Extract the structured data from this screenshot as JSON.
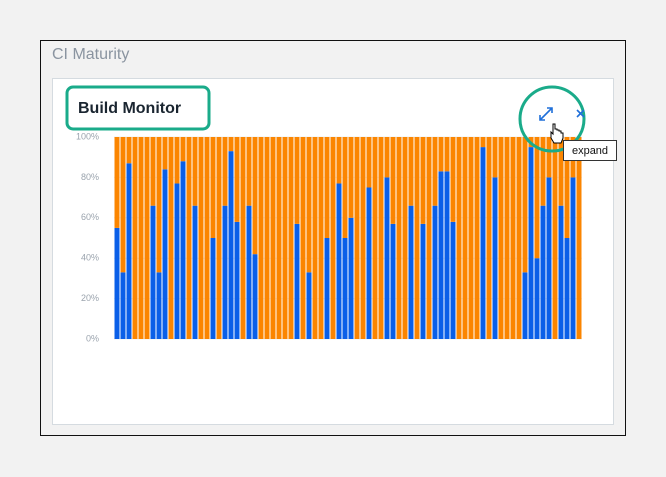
{
  "header": {
    "title": "CI Maturity"
  },
  "card": {
    "title": "Build Monitor",
    "tooltip": "expand"
  },
  "chart_data": {
    "type": "bar",
    "stacked": true,
    "series": [
      {
        "color": "#0a5fe8",
        "values": [
          55,
          33,
          87,
          0,
          0,
          0,
          66,
          33,
          84,
          0,
          77,
          88,
          0,
          66,
          0,
          0,
          50,
          0,
          66,
          93,
          58,
          0,
          66,
          42,
          0,
          0,
          0,
          0,
          0,
          0,
          57,
          0,
          33,
          0,
          0,
          50,
          0,
          77,
          50,
          60,
          0,
          0,
          75,
          0,
          0,
          80,
          57,
          0,
          0,
          66,
          0,
          57,
          0,
          66,
          83,
          83,
          58,
          0,
          0,
          0,
          0,
          95,
          0,
          80,
          0,
          0,
          0,
          0,
          33,
          95,
          40,
          66,
          80,
          0,
          66,
          50,
          80,
          0
        ]
      },
      {
        "color": "#fb8500",
        "values": [
          45,
          67,
          13,
          100,
          100,
          100,
          34,
          67,
          16,
          100,
          23,
          12,
          100,
          34,
          100,
          100,
          50,
          100,
          34,
          7,
          42,
          100,
          34,
          58,
          100,
          100,
          100,
          100,
          100,
          100,
          43,
          100,
          67,
          100,
          100,
          50,
          100,
          23,
          50,
          40,
          100,
          100,
          25,
          100,
          100,
          20,
          43,
          100,
          100,
          34,
          100,
          43,
          100,
          34,
          17,
          17,
          42,
          100,
          100,
          100,
          100,
          5,
          100,
          20,
          100,
          100,
          100,
          100,
          67,
          5,
          60,
          34,
          20,
          100,
          34,
          50,
          20,
          100
        ]
      }
    ],
    "ylim": [
      0,
      100
    ],
    "yticks": [
      {
        "value": 0,
        "label": "0%"
      },
      {
        "value": 20,
        "label": "20%"
      },
      {
        "value": 40,
        "label": "40%"
      },
      {
        "value": 60,
        "label": "60%"
      },
      {
        "value": 80,
        "label": "80%"
      },
      {
        "value": 100,
        "label": "100%"
      }
    ],
    "grid": true
  }
}
